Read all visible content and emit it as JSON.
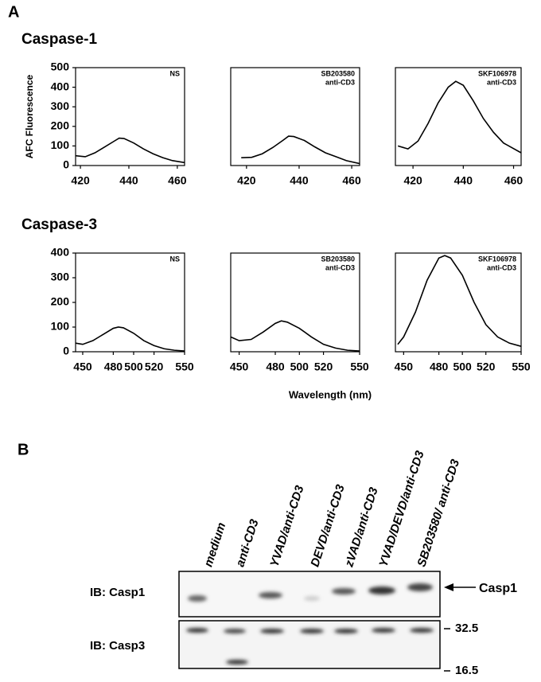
{
  "panel_labels": [
    "A",
    "B"
  ],
  "row_titles": [
    "Caspase-1",
    "Caspase-3"
  ],
  "x_axis_label": "Wavelength (nm)",
  "chart_data": [
    {
      "type": "line",
      "annotation": [
        "NS"
      ],
      "ylabel": "AFC Fluorescence",
      "x": [
        418,
        422,
        426,
        430,
        434,
        436,
        438,
        442,
        446,
        450,
        454,
        458,
        463
      ],
      "values": [
        50,
        45,
        65,
        95,
        125,
        140,
        138,
        115,
        85,
        60,
        40,
        25,
        15
      ],
      "color": "#000000",
      "xlim": [
        418,
        463
      ],
      "xticks": [
        420,
        440,
        460
      ],
      "ylim": [
        0,
        500
      ],
      "yticks": [
        0,
        100,
        200,
        300,
        400,
        500
      ]
    },
    {
      "type": "line",
      "annotation": [
        "SB203580",
        "anti-CD3"
      ],
      "x": [
        418,
        422,
        426,
        430,
        434,
        436,
        438,
        442,
        446,
        450,
        454,
        458,
        463
      ],
      "values": [
        40,
        42,
        60,
        92,
        130,
        150,
        148,
        128,
        95,
        65,
        45,
        25,
        10
      ],
      "color": "#000000",
      "xlim": [
        414,
        463
      ],
      "xticks": [
        420,
        440,
        460
      ],
      "ylim": [
        0,
        500
      ]
    },
    {
      "type": "line",
      "annotation": [
        "SKF106978",
        "anti-CD3"
      ],
      "x": [
        414,
        418,
        422,
        426,
        430,
        434,
        437,
        440,
        444,
        448,
        452,
        456,
        463
      ],
      "values": [
        100,
        85,
        125,
        215,
        320,
        400,
        430,
        410,
        330,
        240,
        170,
        115,
        65
      ],
      "color": "#000000",
      "xlim": [
        413,
        463
      ],
      "xticks": [
        420,
        440,
        460
      ],
      "ylim": [
        0,
        500
      ]
    },
    {
      "type": "line",
      "annotation": [
        "NS"
      ],
      "x": [
        443,
        450,
        460,
        470,
        480,
        485,
        490,
        500,
        510,
        520,
        530,
        540,
        550
      ],
      "values": [
        35,
        30,
        45,
        70,
        95,
        100,
        97,
        75,
        45,
        25,
        12,
        6,
        3
      ],
      "color": "#000000",
      "xlim": [
        443,
        550
      ],
      "xticks": [
        450,
        480,
        500,
        520,
        550
      ],
      "ylim": [
        0,
        400
      ],
      "yticks": [
        0,
        100,
        200,
        300,
        400
      ]
    },
    {
      "type": "line",
      "annotation": [
        "SB203580",
        "anti-CD3"
      ],
      "x": [
        443,
        450,
        460,
        470,
        480,
        485,
        490,
        500,
        510,
        520,
        530,
        540,
        550
      ],
      "values": [
        60,
        45,
        50,
        80,
        115,
        125,
        120,
        95,
        60,
        30,
        15,
        6,
        3
      ],
      "color": "#000000",
      "xlim": [
        443,
        550
      ],
      "xticks": [
        450,
        480,
        500,
        520,
        550
      ],
      "ylim": [
        0,
        400
      ]
    },
    {
      "type": "line",
      "annotation": [
        "SKF106978",
        "anti-CD3"
      ],
      "x": [
        445,
        450,
        460,
        470,
        480,
        485,
        490,
        500,
        510,
        520,
        530,
        540,
        550
      ],
      "values": [
        30,
        60,
        160,
        290,
        380,
        390,
        380,
        310,
        200,
        110,
        60,
        35,
        22
      ],
      "color": "#000000",
      "xlim": [
        443,
        550
      ],
      "xticks": [
        450,
        480,
        500,
        520,
        550
      ],
      "ylim": [
        0,
        400
      ]
    }
  ],
  "blot": {
    "lanes": [
      "medium",
      "anti-CD3",
      "YVAD/anti-CD3",
      "DEVD/anti-CD3",
      "zVAD/anti-CD3",
      "YVAD/DEVD/anti-CD3",
      "SB203580/ anti-CD3"
    ],
    "rows": [
      "IB: Casp1",
      "IB: Casp3"
    ],
    "marker_casp1": "Casp1",
    "size_markers": [
      "32.5",
      "16.5"
    ]
  }
}
